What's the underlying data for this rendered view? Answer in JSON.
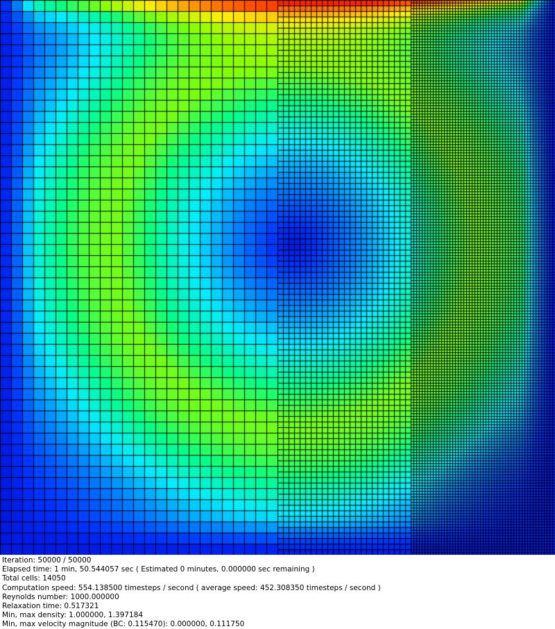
{
  "status": {
    "iteration": "Iteration: 50000 / 50000",
    "elapsed": "Elapsed time: 1 min, 50.544057 sec ( Estimated 0 minutes, 0.000000 sec remaining )",
    "total_cells": "Total cells: 14050",
    "computation_speed": "Computation speed: 554.138500 timesteps / second ( average speed: 452.308350 timesteps / second )",
    "reynolds": "Reynolds number: 1000.000000",
    "relaxation": "Relaxation time: 0.517321",
    "density": "Min, max density: 1.000000, 1.397184",
    "velocity": "Min, max velocity magnitude (BC: 0.115470): 0.000000, 0.111750"
  },
  "visualization": {
    "description_free": true,
    "colormap": [
      "#0000cc",
      "#0033ff",
      "#0088ff",
      "#00eeff",
      "#00ff88",
      "#88ff00",
      "#ffee00",
      "#ff8800",
      "#ff2200"
    ],
    "grid_line_color": "#000000"
  }
}
